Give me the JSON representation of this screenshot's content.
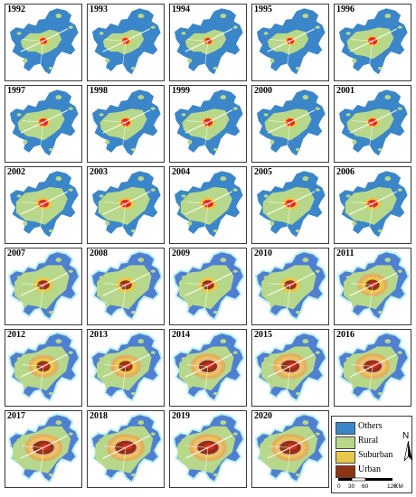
{
  "panels": [
    {
      "year": "1992",
      "stage": 0
    },
    {
      "year": "1993",
      "stage": 0
    },
    {
      "year": "1994",
      "stage": 0
    },
    {
      "year": "1995",
      "stage": 0
    },
    {
      "year": "1996",
      "stage": 1
    },
    {
      "year": "1997",
      "stage": 1
    },
    {
      "year": "1998",
      "stage": 1
    },
    {
      "year": "1999",
      "stage": 1
    },
    {
      "year": "2000",
      "stage": 1
    },
    {
      "year": "2001",
      "stage": 1
    },
    {
      "year": "2002",
      "stage": 2
    },
    {
      "year": "2003",
      "stage": 2
    },
    {
      "year": "2004",
      "stage": 2
    },
    {
      "year": "2005",
      "stage": 2
    },
    {
      "year": "2006",
      "stage": 2
    },
    {
      "year": "2007",
      "stage": 3
    },
    {
      "year": "2008",
      "stage": 3
    },
    {
      "year": "2009",
      "stage": 3
    },
    {
      "year": "2010",
      "stage": 3
    },
    {
      "year": "2011",
      "stage": 4
    },
    {
      "year": "2012",
      "stage": 4
    },
    {
      "year": "2013",
      "stage": 4
    },
    {
      "year": "2014",
      "stage": 5
    },
    {
      "year": "2015",
      "stage": 5
    },
    {
      "year": "2016",
      "stage": 5
    },
    {
      "year": "2017",
      "stage": 6
    },
    {
      "year": "2018",
      "stage": 6
    },
    {
      "year": "2019",
      "stage": 6
    },
    {
      "year": "2020",
      "stage": 6
    }
  ],
  "legend": {
    "items": [
      {
        "label": "Others",
        "color": "#3b86c8"
      },
      {
        "label": "Rural",
        "color": "#b7d88a"
      },
      {
        "label": "Suburban",
        "color": "#e8c84a"
      },
      {
        "label": "Urban",
        "color": "#8f3412"
      }
    ],
    "north_label": "N",
    "scale_ticks": [
      "0",
      "30",
      "60",
      "120"
    ],
    "scale_unit": "KM"
  },
  "colors": {
    "others_early": "#3b86c8",
    "others_late": "#4f7fd0",
    "cyan_fringe": "#bff0f2",
    "rural": "#b7d88a",
    "suburban": "#e8c84a",
    "urban_early": "#e8241c",
    "urban_late": "#8f3412",
    "pink_edge": "#f3a6c6",
    "ring": "#f2a25a"
  }
}
